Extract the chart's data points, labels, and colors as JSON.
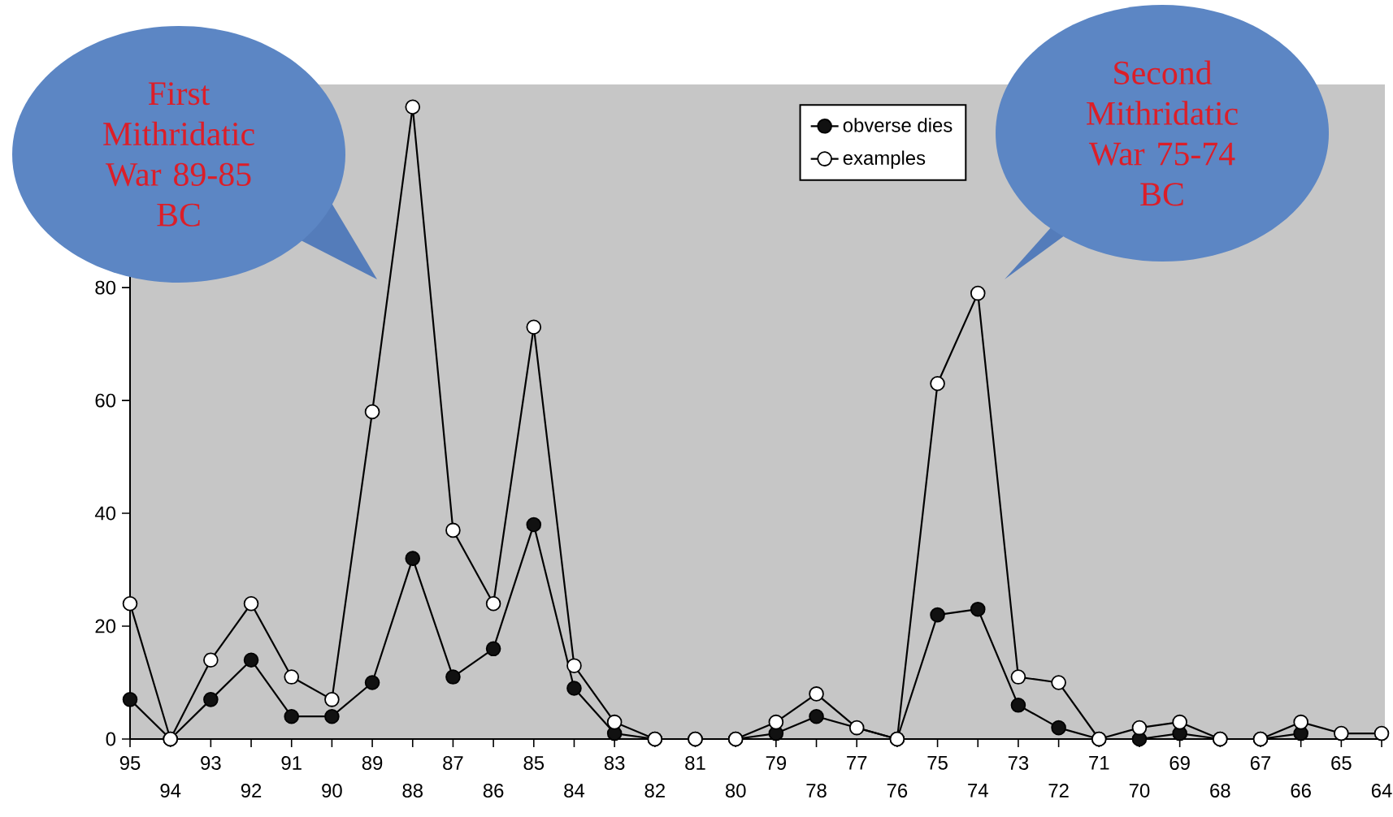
{
  "chart_data": {
    "type": "line",
    "categories": [
      "95",
      "94",
      "93",
      "92",
      "91",
      "90",
      "89",
      "88",
      "87",
      "86",
      "85",
      "84",
      "83",
      "82",
      "81",
      "80",
      "79",
      "78",
      "77",
      "76",
      "75",
      "74",
      "73",
      "72",
      "71",
      "70",
      "69",
      "68",
      "67",
      "66",
      "65",
      "64"
    ],
    "series": [
      {
        "name": "obverse dies",
        "color": "#111111",
        "values": [
          7,
          0,
          7,
          14,
          4,
          4,
          10,
          32,
          11,
          16,
          38,
          9,
          1,
          0,
          0,
          0,
          1,
          4,
          null,
          0,
          22,
          23,
          6,
          2,
          0,
          0,
          1,
          0,
          0,
          1,
          null,
          null
        ]
      },
      {
        "name": "examples",
        "color": "#ffffff",
        "values": [
          24,
          0,
          14,
          24,
          11,
          7,
          58,
          112,
          37,
          24,
          73,
          13,
          3,
          0,
          0,
          0,
          3,
          8,
          2,
          0,
          63,
          79,
          11,
          10,
          0,
          2,
          3,
          0,
          0,
          3,
          1,
          1
        ]
      }
    ],
    "ylim": [
      0,
      116
    ],
    "yticks": [
      0,
      20,
      40,
      60,
      80
    ],
    "marker": "circle",
    "line_style": "solid",
    "legend": "top",
    "grid": false,
    "annotations": [
      "First Mithridatic War 89-85 BC",
      "Second Mithridatic War 75-74 BC"
    ]
  }
}
